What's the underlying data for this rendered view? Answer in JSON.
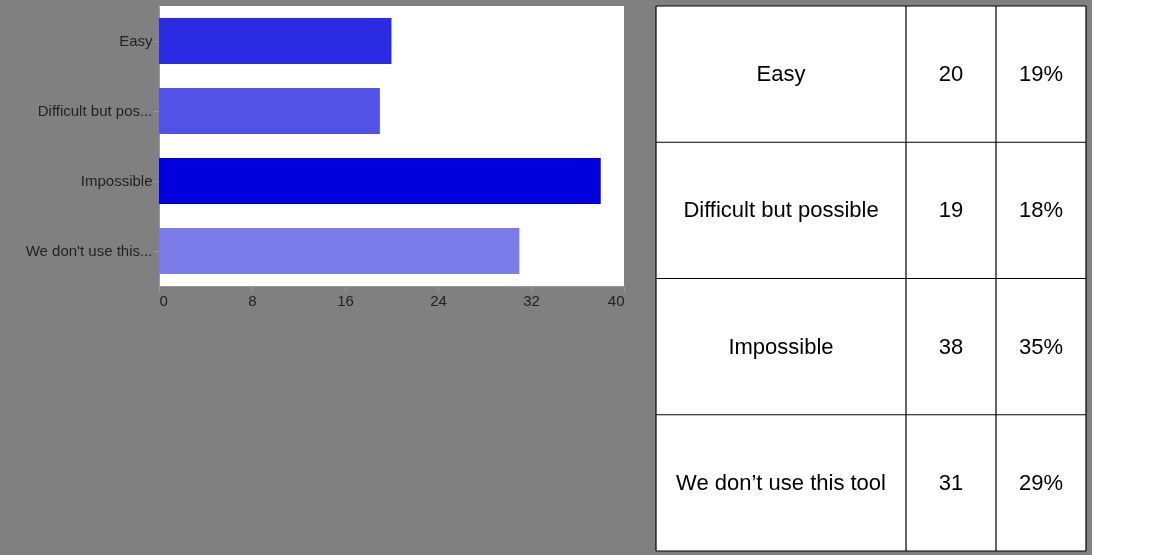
{
  "chart_data": {
    "type": "bar",
    "orientation": "horizontal",
    "categories": [
      "Easy",
      "Difficult but pos...",
      "Impossible",
      "We don't use this..."
    ],
    "values": [
      20,
      19,
      38,
      31
    ],
    "colors": [
      "#2b2be3",
      "#5252e6",
      "#0000dd",
      "#7b7bea"
    ],
    "xlim": [
      0,
      40
    ],
    "xticks": [
      0,
      8,
      16,
      24,
      32,
      40
    ],
    "grid": false,
    "annotations": [
      "Easy",
      "20",
      "19%",
      "Difficult but possible",
      "19",
      "18%",
      "Impossible",
      "38",
      "35%",
      "We don’t use this tool",
      "31",
      "29%"
    ]
  }
}
